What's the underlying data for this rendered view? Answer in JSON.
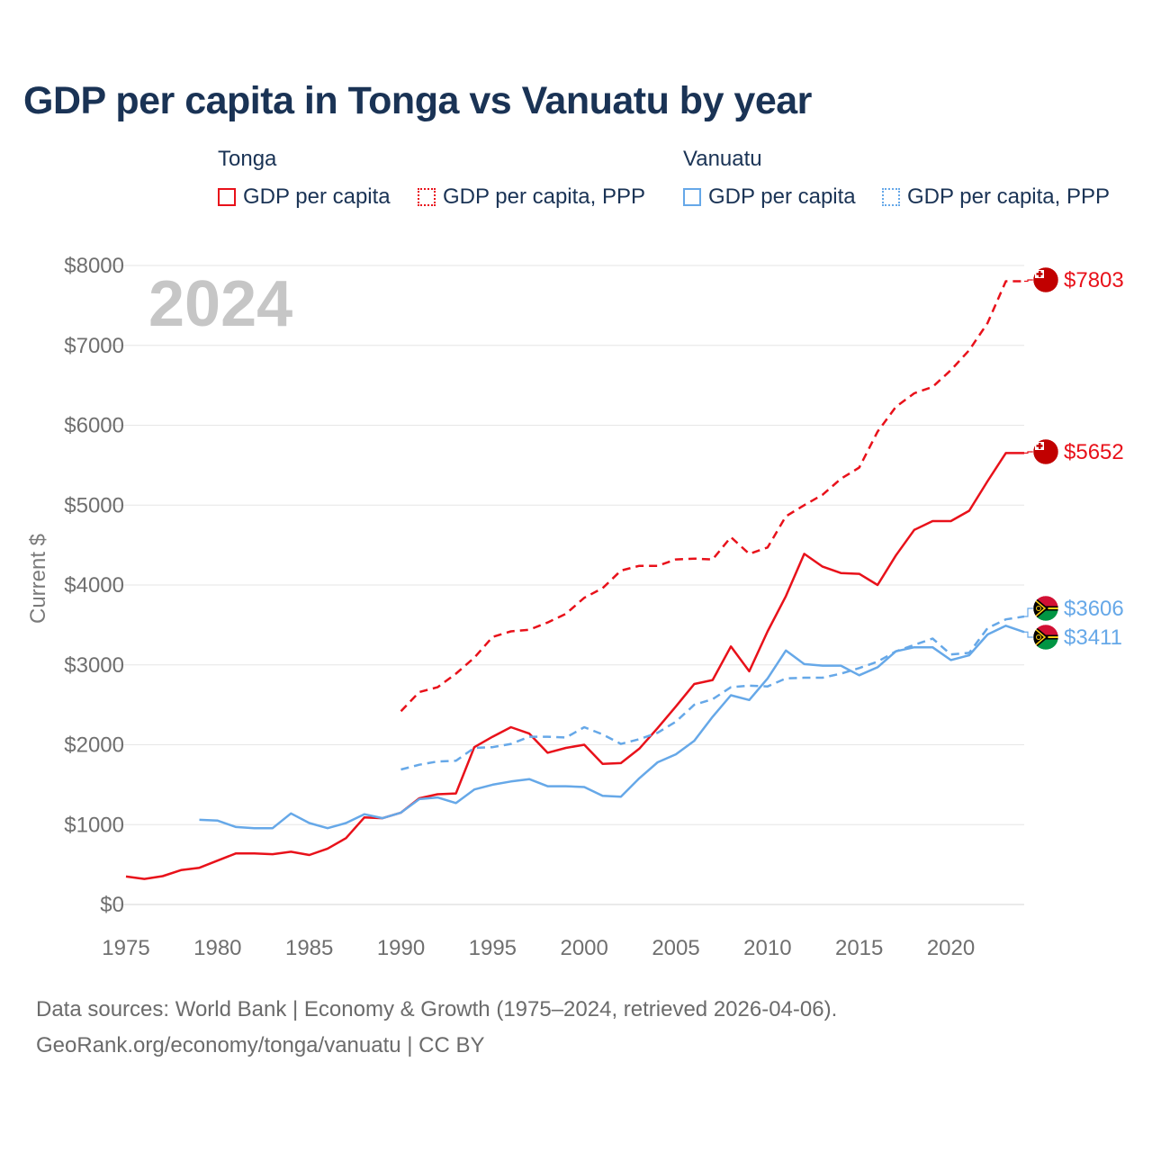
{
  "chart_data": {
    "type": "line",
    "title": "GDP per capita in Tonga vs Vanuatu by year",
    "year_label": "2024",
    "ylabel": "Current $",
    "xlabel": "",
    "xlim": [
      1975,
      2024
    ],
    "ylim": [
      0,
      8000
    ],
    "x_ticks": [
      1975,
      1980,
      1985,
      1990,
      1995,
      2000,
      2005,
      2010,
      2015,
      2020
    ],
    "y_ticks": [
      0,
      1000,
      2000,
      3000,
      4000,
      5000,
      6000,
      7000,
      8000
    ],
    "y_tick_labels": [
      "$0",
      "$1000",
      "$2000",
      "$3000",
      "$4000",
      "$5000",
      "$6000",
      "$7000",
      "$8000"
    ],
    "legend": {
      "groups": [
        {
          "country": "Tonga",
          "items": [
            "GDP per capita",
            "GDP per capita, PPP"
          ]
        },
        {
          "country": "Vanuatu",
          "items": [
            "GDP per capita",
            "GDP per capita, PPP"
          ]
        }
      ]
    },
    "series": [
      {
        "name": "Tonga GDP per capita",
        "color": "#e8111a",
        "style": "solid",
        "end_label": "$5652",
        "x": [
          1975,
          1976,
          1977,
          1978,
          1979,
          1980,
          1981,
          1982,
          1983,
          1984,
          1985,
          1986,
          1987,
          1988,
          1989,
          1990,
          1991,
          1992,
          1993,
          1994,
          1995,
          1996,
          1997,
          1998,
          1999,
          2000,
          2001,
          2002,
          2003,
          2004,
          2005,
          2006,
          2007,
          2008,
          2009,
          2010,
          2011,
          2012,
          2013,
          2014,
          2015,
          2016,
          2017,
          2018,
          2019,
          2020,
          2021,
          2022,
          2023,
          2024
        ],
        "values": [
          350,
          320,
          355,
          430,
          460,
          550,
          640,
          640,
          630,
          660,
          620,
          700,
          830,
          1090,
          1080,
          1150,
          1330,
          1380,
          1390,
          1970,
          2100,
          2220,
          2140,
          1900,
          1960,
          2000,
          1760,
          1770,
          1950,
          2210,
          2480,
          2760,
          2810,
          3230,
          2920,
          3420,
          3860,
          4390,
          4230,
          4150,
          4140,
          4000,
          4370,
          4690,
          4800,
          4800,
          4930,
          5300,
          5652,
          5652
        ]
      },
      {
        "name": "Tonga GDP per capita, PPP",
        "color": "#e8111a",
        "style": "dashed",
        "end_label": "$7803",
        "x": [
          1990,
          1991,
          1992,
          1993,
          1994,
          1995,
          1996,
          1997,
          1998,
          1999,
          2000,
          2001,
          2002,
          2003,
          2004,
          2005,
          2006,
          2007,
          2008,
          2009,
          2010,
          2011,
          2012,
          2013,
          2014,
          2015,
          2016,
          2017,
          2018,
          2019,
          2020,
          2021,
          2022,
          2023,
          2024
        ],
        "values": [
          2420,
          2660,
          2720,
          2890,
          3090,
          3350,
          3420,
          3440,
          3530,
          3640,
          3840,
          3960,
          4180,
          4240,
          4240,
          4320,
          4330,
          4320,
          4600,
          4390,
          4470,
          4860,
          5000,
          5130,
          5330,
          5470,
          5920,
          6230,
          6400,
          6480,
          6690,
          6940,
          7280,
          7803,
          7803
        ]
      },
      {
        "name": "Vanuatu GDP per capita",
        "color": "#66a8e8",
        "style": "solid",
        "end_label": "$3411",
        "x": [
          1979,
          1980,
          1981,
          1982,
          1983,
          1984,
          1985,
          1986,
          1987,
          1988,
          1989,
          1990,
          1991,
          1992,
          1993,
          1994,
          1995,
          1996,
          1997,
          1998,
          1999,
          2000,
          2001,
          2002,
          2003,
          2004,
          2005,
          2006,
          2007,
          2008,
          2009,
          2010,
          2011,
          2012,
          2013,
          2014,
          2015,
          2016,
          2017,
          2018,
          2019,
          2020,
          2021,
          2022,
          2023,
          2024
        ],
        "values": [
          1060,
          1050,
          970,
          955,
          955,
          1140,
          1020,
          955,
          1020,
          1130,
          1080,
          1150,
          1320,
          1340,
          1270,
          1440,
          1500,
          1540,
          1570,
          1480,
          1480,
          1470,
          1360,
          1350,
          1580,
          1780,
          1880,
          2050,
          2350,
          2620,
          2560,
          2830,
          3180,
          3010,
          2990,
          2990,
          2870,
          2970,
          3170,
          3220,
          3220,
          3060,
          3120,
          3380,
          3490,
          3411
        ]
      },
      {
        "name": "Vanuatu GDP per capita, PPP",
        "color": "#66a8e8",
        "style": "dashed",
        "end_label": "$3606",
        "x": [
          1990,
          1991,
          1992,
          1993,
          1994,
          1995,
          1996,
          1997,
          1998,
          1999,
          2000,
          2001,
          2002,
          2003,
          2004,
          2005,
          2006,
          2007,
          2008,
          2009,
          2010,
          2011,
          2012,
          2013,
          2014,
          2015,
          2016,
          2017,
          2018,
          2019,
          2020,
          2021,
          2022,
          2023,
          2024
        ],
        "values": [
          1690,
          1750,
          1790,
          1800,
          1960,
          1970,
          2010,
          2100,
          2100,
          2090,
          2220,
          2130,
          2010,
          2070,
          2150,
          2290,
          2500,
          2570,
          2720,
          2740,
          2730,
          2830,
          2840,
          2840,
          2890,
          2960,
          3040,
          3170,
          3250,
          3330,
          3130,
          3150,
          3460,
          3570,
          3606
        ]
      }
    ],
    "source_lines": [
      "Data sources: World Bank | Economy & Growth (1975–2024, retrieved 2026-04-06).",
      "GeoRank.org/economy/tonga/vanuatu | CC BY"
    ]
  }
}
